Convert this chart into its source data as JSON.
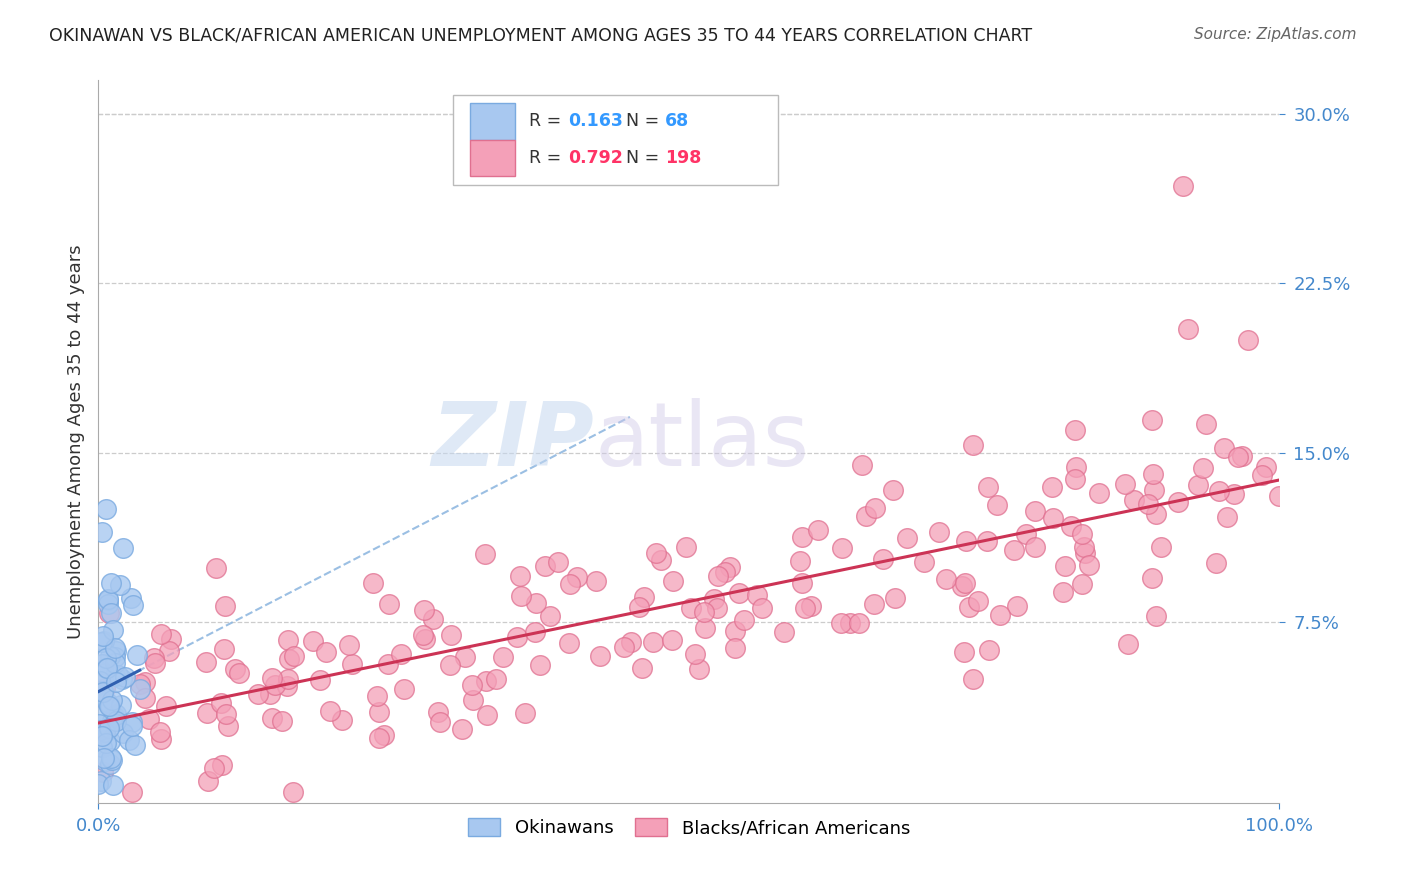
{
  "title": "OKINAWAN VS BLACK/AFRICAN AMERICAN UNEMPLOYMENT AMONG AGES 35 TO 44 YEARS CORRELATION CHART",
  "source": "Source: ZipAtlas.com",
  "ylabel_label": "Unemployment Among Ages 35 to 44 years",
  "ytick_labels": [
    "7.5%",
    "15.0%",
    "22.5%",
    "30.0%"
  ],
  "ytick_values": [
    0.075,
    0.15,
    0.225,
    0.3
  ],
  "xmin": 0.0,
  "xmax": 1.0,
  "ymin": -0.005,
  "ymax": 0.315,
  "watermark_zip": "ZIP",
  "watermark_atlas": "atlas",
  "okinawan_color": "#a8c8f0",
  "okinawan_edge": "#7aaae0",
  "black_color": "#f4a0b8",
  "black_edge": "#e07090",
  "okinawan_R": 0.163,
  "okinawan_N": 68,
  "black_R": 0.792,
  "black_N": 198,
  "reg_blue_color": "#3060b0",
  "reg_dash_color": "#90b8e0",
  "reg_pink_color": "#cc3355",
  "background_color": "#ffffff",
  "grid_color": "#cccccc",
  "title_color": "#222222",
  "source_color": "#666666",
  "tick_color": "#4488cc",
  "ylabel_color": "#333333",
  "legend_R_color_ok": "#3399ff",
  "legend_N_color_ok": "#3399ff",
  "legend_R_color_bl": "#ff3366",
  "legend_N_color_bl": "#ff3366"
}
